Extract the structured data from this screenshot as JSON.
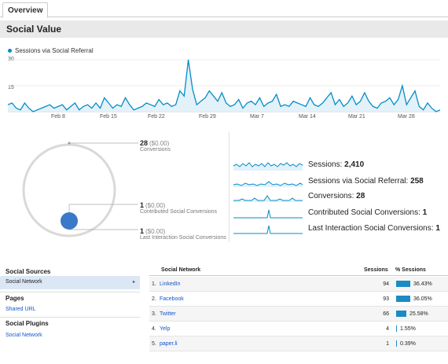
{
  "tabs": {
    "overview": "Overview"
  },
  "page": {
    "title": "Social Value"
  },
  "trend": {
    "legend": "Sessions via Social Referral",
    "y_ticks": [
      "30",
      "15"
    ],
    "x_ticks": [
      "Feb 8",
      "Feb 15",
      "Feb 22",
      "Feb 29",
      "Mar 7",
      "Mar 14",
      "Mar 21",
      "Mar 28"
    ],
    "accent": "#058dc7"
  },
  "chart_data": {
    "type": "area",
    "series": [
      {
        "name": "Sessions via Social Referral",
        "values": [
          4,
          5,
          2,
          1,
          5,
          2,
          0,
          1,
          2,
          3,
          4,
          2,
          3,
          4,
          1,
          3,
          5,
          1,
          3,
          4,
          2,
          5,
          2,
          8,
          5,
          2,
          4,
          3,
          8,
          4,
          1,
          2,
          3,
          5,
          4,
          3,
          7,
          4,
          5,
          3,
          4,
          12,
          9,
          30,
          13,
          4,
          6,
          8,
          12,
          9,
          6,
          11,
          5,
          3,
          4,
          7,
          2,
          5,
          6,
          4,
          8,
          3,
          5,
          6,
          10,
          3,
          4,
          3,
          6,
          5,
          4,
          3,
          8,
          4,
          3,
          5,
          8,
          11,
          4,
          7,
          3,
          5,
          9,
          4,
          6,
          11,
          6,
          3,
          2,
          5,
          6,
          8,
          4,
          7,
          15,
          4,
          8,
          12,
          3,
          1,
          5,
          2,
          0,
          1
        ]
      }
    ],
    "ylim": [
      0,
      30
    ],
    "y_ticks": [
      15,
      30
    ],
    "x_tick_labels": [
      "Feb 8",
      "Feb 15",
      "Feb 22",
      "Feb 29",
      "Mar 7",
      "Mar 14",
      "Mar 21",
      "Mar 28"
    ],
    "grid": true,
    "legend": "top-left"
  },
  "conversions": {
    "total": {
      "count": "28",
      "value": "($0.00)",
      "label": "Conversions"
    },
    "contributed": {
      "count": "1",
      "value": "($0.00)",
      "label": "Contributed Social Conversions"
    },
    "last": {
      "count": "1",
      "value": "($0.00)",
      "label": "Last Interaction Social Conversions"
    }
  },
  "metrics": [
    {
      "label": "Sessions:",
      "value": "2,410"
    },
    {
      "label": "Sessions via Social Referral:",
      "value": "258"
    },
    {
      "label": "Conversions:",
      "value": "28"
    },
    {
      "label": "Contributed Social Conversions:",
      "value": "1"
    },
    {
      "label": "Last Interaction Social Conversions:",
      "value": "1"
    }
  ],
  "sidebar": {
    "sources_heading": "Social Sources",
    "selected": "Social Network",
    "pages_heading": "Pages",
    "pages_link": "Shared URL",
    "plugins_heading": "Social Plugins",
    "plugins_link": "Social Network"
  },
  "table": {
    "col_network": "Social Network",
    "col_sessions": "Sessions",
    "col_pct": "% Sessions",
    "rows": [
      {
        "idx": "1.",
        "name": "LinkedIn",
        "sessions": "94",
        "pct": "36.43%",
        "share": 0.3643
      },
      {
        "idx": "2.",
        "name": "Facebook",
        "sessions": "93",
        "pct": "36.05%",
        "share": 0.3605
      },
      {
        "idx": "3.",
        "name": "Twitter",
        "sessions": "66",
        "pct": "25.58%",
        "share": 0.2558
      },
      {
        "idx": "4.",
        "name": "Yelp",
        "sessions": "4",
        "pct": "1.55%",
        "share": 0.0155
      },
      {
        "idx": "5.",
        "name": "paper.li",
        "sessions": "1",
        "pct": "0.39%",
        "share": 0.0039
      }
    ]
  }
}
